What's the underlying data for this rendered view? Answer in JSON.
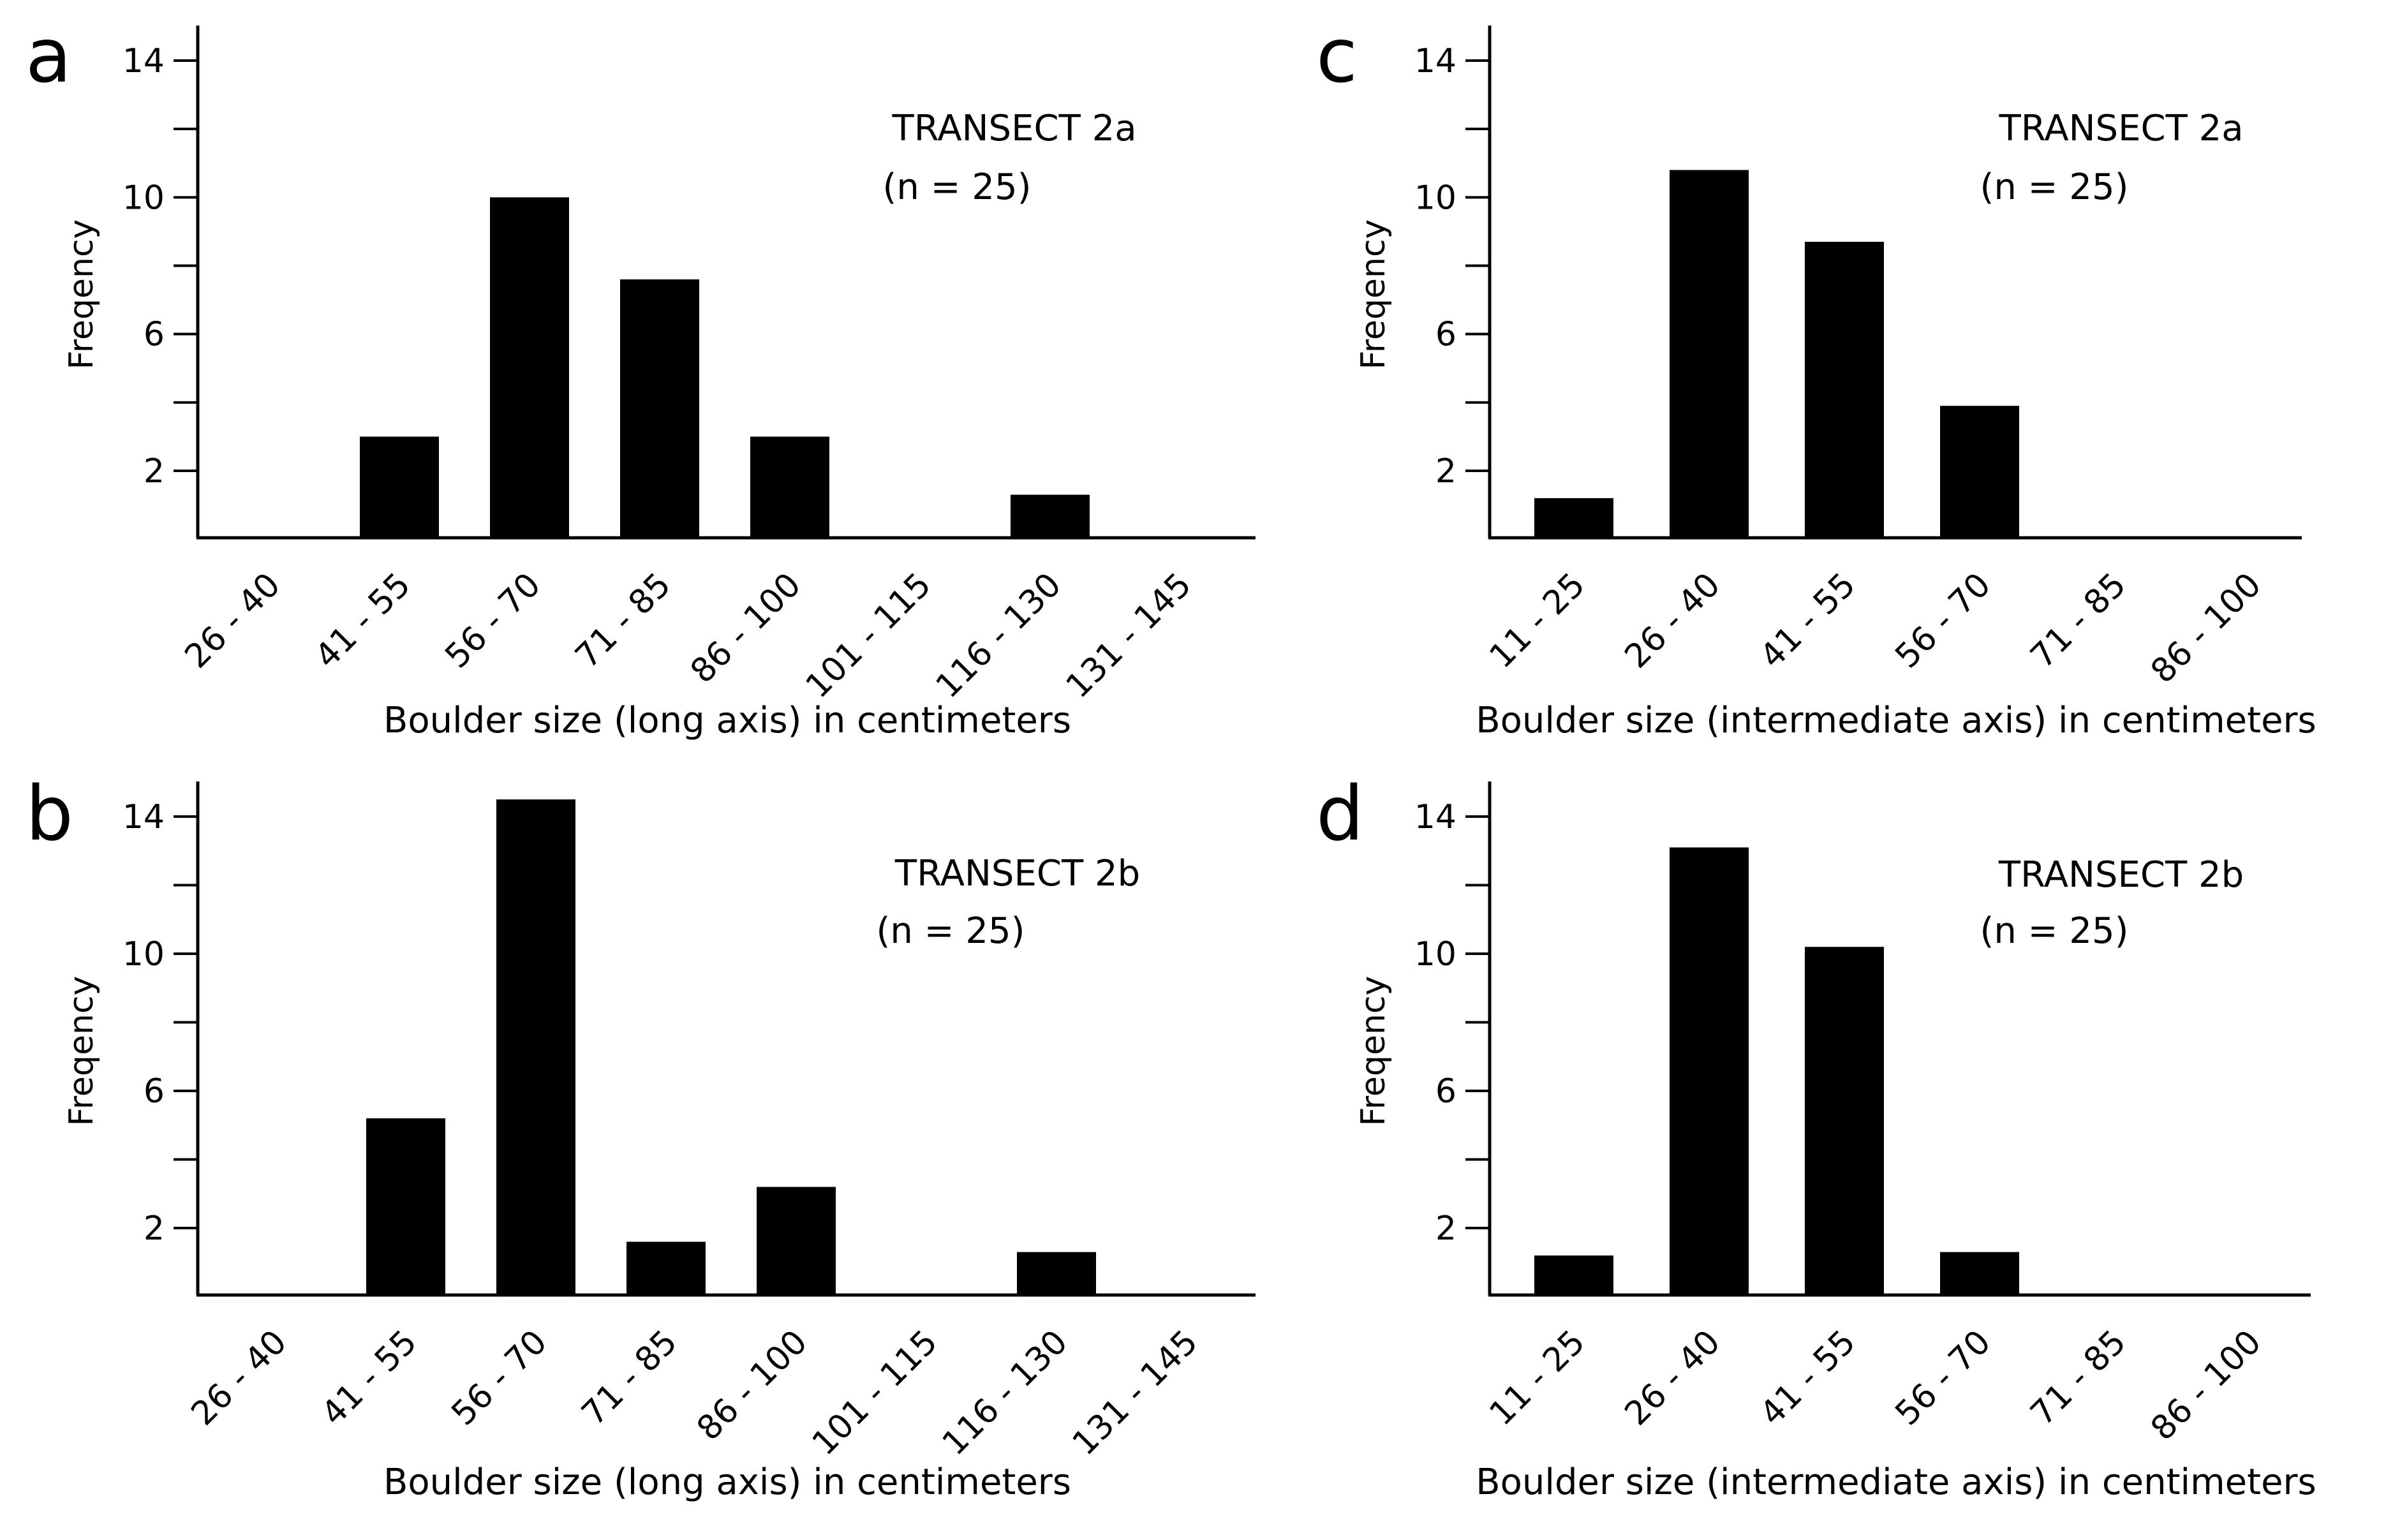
{
  "chart_data": [
    {
      "type": "bar",
      "panel": "a",
      "annotation": "TRANSECT 2a",
      "sample_size": "(n = 25)",
      "categories": [
        "26 - 40",
        "41 - 55",
        "56 - 70",
        "71 - 85",
        "86 - 100",
        "101 - 115",
        "116 - 130",
        "131 - 145"
      ],
      "values": [
        0,
        3,
        10,
        7.6,
        3,
        0,
        1.3,
        0
      ],
      "xlabel": "Boulder size (long axis) in centimeters",
      "ylabel": "Freqency",
      "ylim": [
        0,
        15
      ],
      "yticks": [
        2,
        6,
        10,
        14
      ],
      "grid": false
    },
    {
      "type": "bar",
      "panel": "b",
      "annotation": "TRANSECT 2b",
      "sample_size": "(n = 25)",
      "categories": [
        "26 - 40",
        "41 - 55",
        "56 - 70",
        "71 - 85",
        "86 - 100",
        "101 - 115",
        "116 - 130",
        "131 - 145"
      ],
      "values": [
        0,
        5.2,
        14.5,
        1.6,
        3.2,
        0,
        1.3,
        0
      ],
      "xlabel": "Boulder size (long axis) in centimeters",
      "ylabel": "Freqency",
      "ylim": [
        0,
        15
      ],
      "yticks": [
        2,
        6,
        10,
        14
      ],
      "grid": false
    },
    {
      "type": "bar",
      "panel": "c",
      "annotation": "TRANSECT 2a",
      "sample_size": "(n = 25)",
      "categories": [
        "11 - 25",
        "26 - 40",
        "41 - 55",
        "56 - 70",
        "71 - 85",
        "86 - 100"
      ],
      "values": [
        1.2,
        10.8,
        8.7,
        3.9,
        0,
        0
      ],
      "xlabel": "Boulder size (intermediate axis) in centimeters",
      "ylabel": "Freqency",
      "ylim": [
        0,
        15
      ],
      "yticks": [
        2,
        6,
        10,
        14
      ],
      "grid": false
    },
    {
      "type": "bar",
      "panel": "d",
      "annotation": "TRANSECT 2b",
      "sample_size": "(n = 25)",
      "categories": [
        "11 - 25",
        "26 - 40",
        "41 - 55",
        "56 - 70",
        "71 - 85",
        "86 - 100"
      ],
      "values": [
        1.2,
        13.1,
        10.2,
        1.3,
        0,
        0
      ],
      "xlabel": "Boulder size (intermediate axis) in centimeters",
      "ylabel": "Freqency",
      "ylim": [
        0,
        15
      ],
      "yticks": [
        2,
        6,
        10,
        14
      ],
      "grid": false
    }
  ],
  "colors": {
    "bar": "#000000",
    "axis": "#000000",
    "background": "#ffffff"
  }
}
